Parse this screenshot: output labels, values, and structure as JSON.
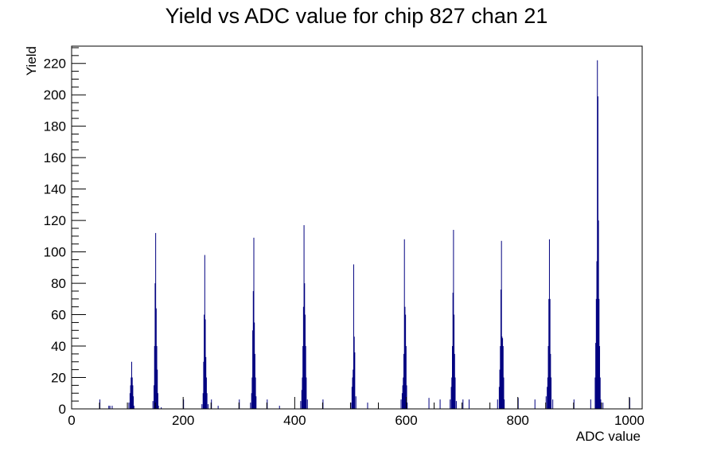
{
  "chart_data": {
    "type": "bar",
    "title": "Yield vs ADC value for chip 827 chan 21",
    "xlabel": "ADC value",
    "ylabel": "Yield",
    "xlim": [
      0,
      1023
    ],
    "ylim": [
      0,
      231
    ],
    "x_ticks": [
      0,
      200,
      400,
      600,
      800,
      1000
    ],
    "y_ticks": [
      0,
      20,
      40,
      60,
      80,
      100,
      120,
      140,
      160,
      180,
      200,
      220
    ],
    "grid": false,
    "legend": "none",
    "bar_color": "#000080",
    "series": [
      {
        "x": [
          50,
          66,
          68,
          72,
          102,
          104,
          105,
          106,
          107,
          108,
          109,
          110,
          111,
          145,
          147,
          148,
          149,
          150,
          151,
          152,
          153,
          154,
          155,
          160,
          200,
          233,
          235,
          236,
          237,
          238,
          239,
          240,
          241,
          242,
          244,
          250,
          262,
          300,
          320,
          322,
          323,
          324,
          325,
          326,
          327,
          328,
          329,
          330,
          350,
          372,
          410,
          412,
          413,
          414,
          415,
          416,
          417,
          418,
          419,
          420,
          422,
          450,
          500,
          502,
          503,
          504,
          505,
          506,
          507,
          509,
          530,
          590,
          592,
          593,
          594,
          595,
          596,
          597,
          598,
          599,
          600,
          601,
          640,
          660,
          678,
          680,
          681,
          682,
          683,
          684,
          685,
          686,
          687,
          689,
          701,
          712,
          763,
          766,
          767,
          768,
          769,
          770,
          771,
          772,
          773,
          774,
          775,
          800,
          830,
          850,
          852,
          853,
          854,
          855,
          856,
          857,
          858,
          859,
          862,
          900,
          930,
          938,
          939,
          940,
          941,
          942,
          943,
          944,
          945,
          946,
          947,
          948,
          952,
          1000
        ],
        "y": [
          6,
          2,
          2,
          2,
          4,
          10,
          15,
          20,
          30,
          20,
          15,
          8,
          2,
          5,
          15,
          40,
          80,
          112,
          64,
          40,
          25,
          10,
          2,
          1,
          6,
          3,
          10,
          30,
          60,
          98,
          57,
          33,
          20,
          10,
          3,
          6,
          2,
          6,
          4,
          10,
          20,
          50,
          75,
          109,
          55,
          35,
          20,
          8,
          6,
          2,
          5,
          12,
          20,
          40,
          65,
          117,
          80,
          60,
          40,
          20,
          6,
          6,
          4,
          14,
          20,
          25,
          92,
          46,
          36,
          8,
          4,
          6,
          10,
          15,
          20,
          35,
          108,
          65,
          60,
          40,
          15,
          4,
          7,
          6,
          6,
          14,
          20,
          40,
          74,
          114,
          60,
          35,
          20,
          5,
          6,
          6,
          6,
          14,
          25,
          40,
          76,
          107,
          46,
          45,
          40,
          20,
          6,
          7,
          6,
          8,
          14,
          20,
          40,
          70,
          108,
          70,
          35,
          20,
          6,
          6,
          6,
          20,
          42,
          70,
          94,
          222,
          199,
          120,
          70,
          40,
          20,
          6,
          4,
          7
        ]
      }
    ]
  }
}
